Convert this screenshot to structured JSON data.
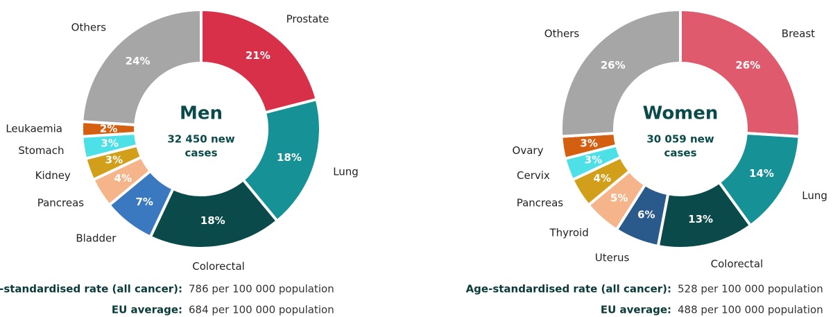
{
  "chart_data": [
    {
      "type": "pie",
      "center_title": "Men",
      "center_subtitle": [
        "32 450 new",
        "cases"
      ],
      "categories": [
        "Prostate",
        "Lung",
        "Colorectal",
        "Bladder",
        "Pancreas",
        "Kidney",
        "Stomach",
        "Leukaemia",
        "Others"
      ],
      "values": [
        21,
        18,
        18,
        7,
        4,
        3,
        3,
        2,
        24
      ],
      "value_labels": [
        "21%",
        "18%",
        "18%",
        "7%",
        "4%",
        "3%",
        "3%",
        "2%",
        "24%"
      ],
      "colors": [
        "#d9304a",
        "#169196",
        "#0b4a4a",
        "#3a78c0",
        "#f5b48a",
        "#d29f1a",
        "#4de0e6",
        "#d45f10",
        "#a6a6a6"
      ],
      "notes": [
        {
          "label": "Age-standardised rate (all cancer):",
          "text": "786 per 100 000 population"
        },
        {
          "label": "EU average:",
          "text": "684 per 100 000 population"
        }
      ]
    },
    {
      "type": "pie",
      "center_title": "Women",
      "center_subtitle": [
        "30 059 new",
        "cases"
      ],
      "categories": [
        "Breast",
        "Lung",
        "Colorectal",
        "Uterus",
        "Thyroid",
        "Pancreas",
        "Cervix",
        "Ovary",
        "Others"
      ],
      "values": [
        26,
        14,
        13,
        6,
        5,
        4,
        3,
        3,
        26
      ],
      "value_labels": [
        "26%",
        "14%",
        "13%",
        "6%",
        "5%",
        "4%",
        "3%",
        "3%",
        "26%"
      ],
      "colors": [
        "#e05a6e",
        "#169196",
        "#0b4a4a",
        "#2a5a8c",
        "#f5b48a",
        "#d29f1a",
        "#4de0e6",
        "#d45f10",
        "#a6a6a6"
      ],
      "notes": [
        {
          "label": "Age-standardised rate (all cancer):",
          "text": "528 per 100 000 population"
        },
        {
          "label": "EU average:",
          "text": "488 per 100 000 population"
        }
      ]
    }
  ]
}
